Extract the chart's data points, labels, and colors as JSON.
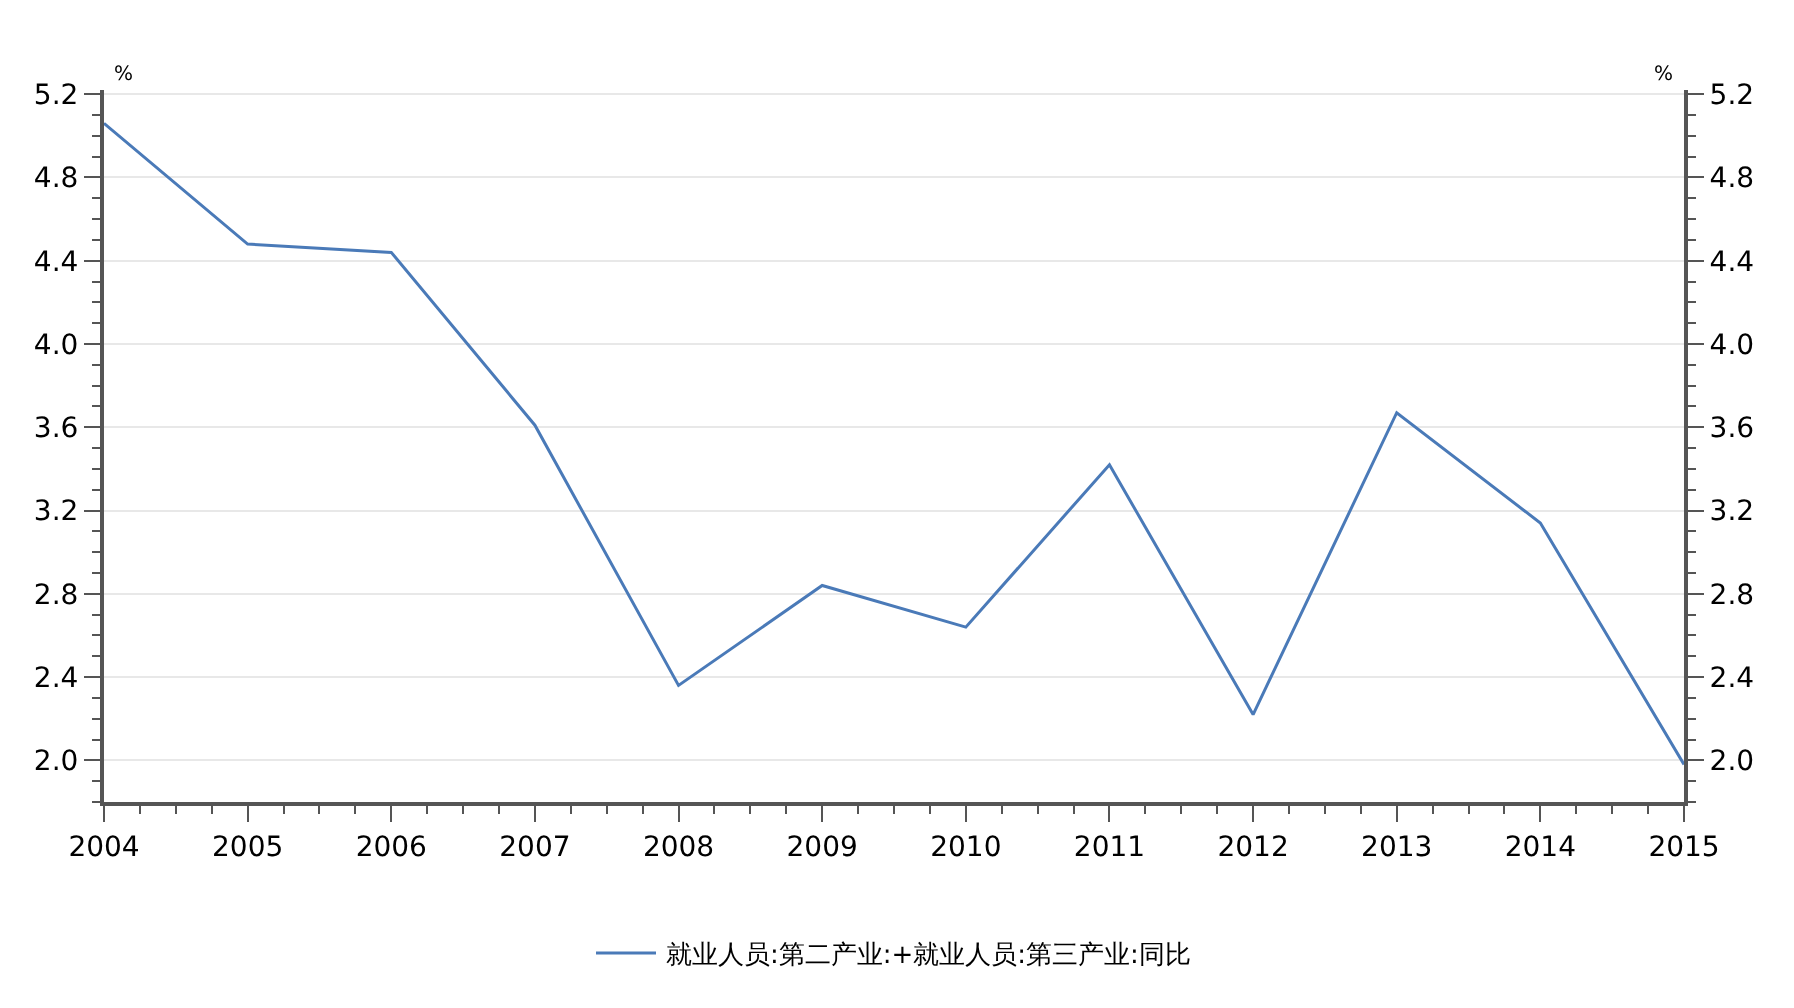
{
  "chart_data": {
    "type": "line",
    "ylabel": "%",
    "y2label": "%",
    "x": [
      2004,
      2005,
      2006,
      2007,
      2008,
      2009,
      2010,
      2011,
      2012,
      2013,
      2014,
      2015
    ],
    "series": [
      {
        "name": "就业人员:第二产业:+就业人员:第三产业:同比",
        "color": "#4a7ab8",
        "values": [
          5.06,
          4.48,
          4.44,
          3.61,
          2.36,
          2.84,
          2.64,
          3.42,
          2.22,
          3.67,
          3.14,
          1.98
        ]
      }
    ],
    "xlim": [
      2004,
      2015
    ],
    "xticks": [
      2004,
      2005,
      2006,
      2007,
      2008,
      2009,
      2010,
      2011,
      2012,
      2013,
      2014,
      2015
    ],
    "ylim": [
      1.8,
      5.22
    ],
    "yticks": [
      {
        "value": 2,
        "label": "2.0"
      },
      2.4,
      2.8,
      3.2,
      3.6,
      {
        "value": 4,
        "label": "4.0"
      },
      4.4,
      4.8,
      5.2
    ],
    "y2lim": [
      1.8,
      5.22
    ],
    "y2ticks": [
      {
        "value": 2,
        "label": "2.0"
      },
      2.4,
      2.8,
      3.2,
      3.6,
      {
        "value": 4,
        "label": "4.0"
      },
      4.4,
      4.8,
      5.2
    ],
    "grid": "y",
    "legend": "bottom",
    "marker": "none",
    "line_style": "solid"
  }
}
